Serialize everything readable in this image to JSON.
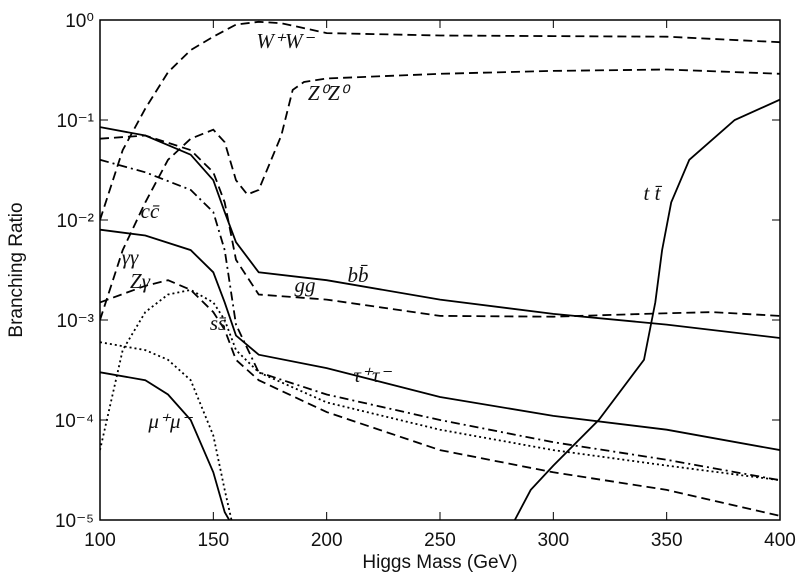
{
  "chart_data": {
    "type": "line",
    "xlabel": "Higgs Mass (GeV)",
    "ylabel": "Branching Ratio",
    "xlim": [
      100,
      400
    ],
    "xticks": [
      100,
      150,
      200,
      250,
      300,
      350,
      400
    ],
    "ylim": [
      1e-05,
      1
    ],
    "yscale": "log",
    "yticks": [
      {
        "value": 1,
        "label": "10⁰"
      },
      {
        "value": 0.1,
        "label": "10⁻¹"
      },
      {
        "value": 0.01,
        "label": "10⁻²"
      },
      {
        "value": 0.001,
        "label": "10⁻³"
      },
      {
        "value": 0.0001,
        "label": "10⁻⁴"
      },
      {
        "value": 1e-05,
        "label": "10⁻⁵"
      }
    ],
    "series": [
      {
        "name": "W⁺W⁻",
        "color": "#000000",
        "style": "dashed",
        "x": [
          100,
          110,
          120,
          130,
          140,
          150,
          160,
          170,
          180,
          200,
          250,
          300,
          350,
          400
        ],
        "values": [
          0.01,
          0.05,
          0.13,
          0.3,
          0.5,
          0.68,
          0.9,
          0.96,
          0.93,
          0.74,
          0.7,
          0.69,
          0.68,
          0.6
        ]
      },
      {
        "name": "Z⁰Z⁰",
        "color": "#000000",
        "style": "dashed",
        "x": [
          100,
          110,
          120,
          130,
          140,
          150,
          155,
          160,
          165,
          170,
          180,
          185,
          190,
          200,
          250,
          300,
          350,
          400
        ],
        "values": [
          0.001,
          0.005,
          0.015,
          0.04,
          0.065,
          0.08,
          0.06,
          0.025,
          0.018,
          0.02,
          0.07,
          0.2,
          0.24,
          0.26,
          0.29,
          0.31,
          0.32,
          0.29
        ]
      },
      {
        "name": "bb̄",
        "color": "#000000",
        "style": "solid",
        "x": [
          100,
          120,
          140,
          150,
          155,
          160,
          170,
          200,
          250,
          300,
          350,
          400
        ],
        "values": [
          0.085,
          0.07,
          0.045,
          0.025,
          0.012,
          0.006,
          0.003,
          0.0025,
          0.0016,
          0.00115,
          0.0009,
          0.00066
        ]
      },
      {
        "name": "t t̄",
        "color": "#000000",
        "style": "solid",
        "x": [
          283,
          290,
          300,
          320,
          340,
          345,
          348,
          352,
          360,
          380,
          400
        ],
        "values": [
          1e-05,
          2e-05,
          3.5e-05,
          0.0001,
          0.0004,
          0.0015,
          0.005,
          0.015,
          0.04,
          0.1,
          0.16
        ]
      },
      {
        "name": "gg",
        "color": "#000000",
        "style": "dashed",
        "x": [
          100,
          120,
          140,
          150,
          155,
          160,
          170,
          200,
          250,
          300,
          340,
          370,
          400
        ],
        "values": [
          0.065,
          0.07,
          0.05,
          0.03,
          0.015,
          0.004,
          0.0018,
          0.0016,
          0.0011,
          0.00108,
          0.00115,
          0.0012,
          0.0011
        ]
      },
      {
        "name": "cc̄",
        "color": "#000000",
        "style": "dashdot",
        "x": [
          100,
          120,
          140,
          150,
          155,
          160,
          170,
          200,
          250,
          300,
          350,
          400
        ],
        "values": [
          0.04,
          0.03,
          0.02,
          0.012,
          0.005,
          0.0009,
          0.0003,
          0.00018,
          0.0001,
          6e-05,
          4e-05,
          2.5e-05
        ]
      },
      {
        "name": "γγ",
        "color": "#000000",
        "style": "dotted",
        "x": [
          100,
          110,
          120,
          130,
          140,
          150,
          155,
          160,
          170,
          200,
          250,
          300,
          350,
          400
        ],
        "values": [
          5e-05,
          0.0005,
          0.0012,
          0.0018,
          0.002,
          0.0015,
          0.001,
          0.0005,
          0.0003,
          0.00015,
          8e-05,
          5e-05,
          3.5e-05,
          2.5e-05
        ]
      },
      {
        "name": "Zγ",
        "color": "#000000",
        "style": "dashed",
        "x": [
          100,
          120,
          130,
          140,
          150,
          155,
          160,
          170,
          200,
          250,
          300,
          350,
          400
        ],
        "values": [
          0.0015,
          0.0022,
          0.0025,
          0.002,
          0.0012,
          0.0008,
          0.0004,
          0.00025,
          0.00012,
          5e-05,
          3e-05,
          2e-05,
          1.1e-05
        ]
      },
      {
        "name": "ss̄",
        "color": "#000000",
        "style": "dotted",
        "x": [
          100,
          120,
          130,
          140,
          150,
          155,
          158
        ],
        "values": [
          0.0006,
          0.0005,
          0.0004,
          0.00025,
          7e-05,
          2e-05,
          1e-05
        ]
      },
      {
        "name": "τ⁺τ⁻",
        "color": "#000000",
        "style": "solid",
        "x": [
          100,
          120,
          140,
          150,
          155,
          160,
          170,
          200,
          250,
          300,
          350,
          400
        ],
        "values": [
          0.008,
          0.007,
          0.005,
          0.003,
          0.0015,
          0.0007,
          0.00045,
          0.00033,
          0.00017,
          0.00011,
          8e-05,
          5e-05
        ]
      },
      {
        "name": "μ⁺μ⁻",
        "color": "#000000",
        "style": "solid",
        "x": [
          100,
          120,
          130,
          140,
          150,
          155,
          157
        ],
        "values": [
          0.0003,
          0.00025,
          0.00018,
          0.0001,
          3e-05,
          1.2e-05,
          1e-05
        ]
      }
    ]
  }
}
